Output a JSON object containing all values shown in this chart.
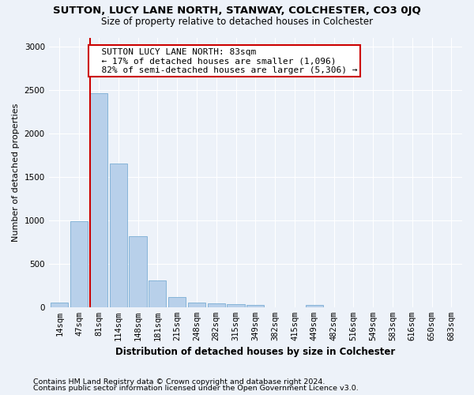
{
  "title": "SUTTON, LUCY LANE NORTH, STANWAY, COLCHESTER, CO3 0JQ",
  "subtitle": "Size of property relative to detached houses in Colchester",
  "xlabel": "Distribution of detached houses by size in Colchester",
  "ylabel": "Number of detached properties",
  "footer1": "Contains HM Land Registry data © Crown copyright and database right 2024.",
  "footer2": "Contains public sector information licensed under the Open Government Licence v3.0.",
  "bin_labels": [
    "14sqm",
    "47sqm",
    "81sqm",
    "114sqm",
    "148sqm",
    "181sqm",
    "215sqm",
    "248sqm",
    "282sqm",
    "315sqm",
    "349sqm",
    "382sqm",
    "415sqm",
    "449sqm",
    "482sqm",
    "516sqm",
    "549sqm",
    "583sqm",
    "616sqm",
    "650sqm",
    "683sqm"
  ],
  "bar_values": [
    50,
    990,
    2460,
    1650,
    820,
    305,
    115,
    50,
    40,
    35,
    25,
    0,
    0,
    30,
    0,
    0,
    0,
    0,
    0,
    0,
    0
  ],
  "bar_color": "#b8d0ea",
  "bar_edge_color": "#7aadd4",
  "red_line_x": 2,
  "red_line_color": "#cc0000",
  "annotation_text": "  SUTTON LUCY LANE NORTH: 83sqm\n  ← 17% of detached houses are smaller (1,096)\n  82% of semi-detached houses are larger (5,306) →",
  "annotation_box_color": "white",
  "annotation_box_edge": "#cc0000",
  "ylim": [
    0,
    3100
  ],
  "yticks": [
    0,
    500,
    1000,
    1500,
    2000,
    2500,
    3000
  ],
  "bg_color": "#edf2f9",
  "grid_color": "#ffffff",
  "title_fontsize": 9.5,
  "subtitle_fontsize": 8.5,
  "ylabel_fontsize": 8.0,
  "xlabel_fontsize": 8.5,
  "tick_fontsize": 7.5,
  "footer_fontsize": 6.8,
  "annotation_fontsize": 8.0
}
